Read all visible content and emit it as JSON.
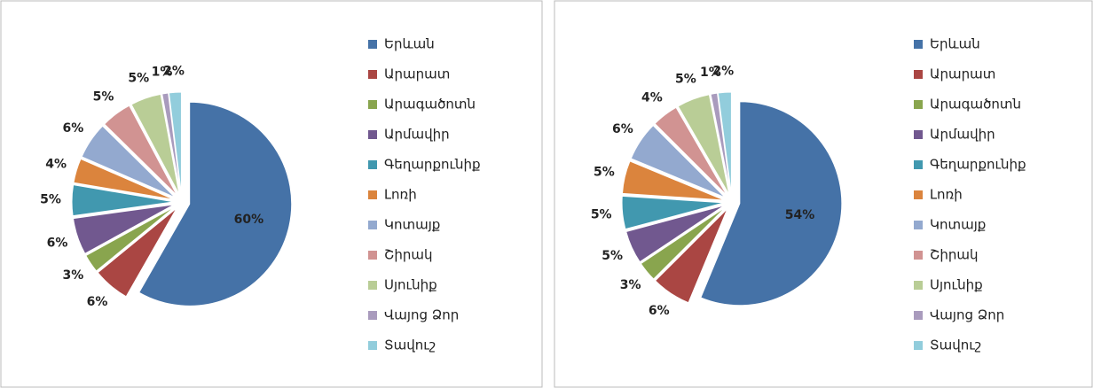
{
  "chart_data": [
    {
      "type": "pie",
      "categories": [
        "Երևան",
        "Արարատ",
        "Արագածոտն",
        "Արմավիր",
        "Գեղարքունիք",
        "Լոռի",
        "Կոտայք",
        "Շիրակ",
        "Սյունիք",
        "Վայոց Ձոր",
        "Տավուշ"
      ],
      "values": [
        60,
        6,
        3,
        6,
        5,
        4,
        6,
        5,
        5,
        1,
        2
      ],
      "value_labels": [
        "60%",
        "6%",
        "3%",
        "6%",
        "5%",
        "4%",
        "6%",
        "5%",
        "5%",
        "1%",
        "2%"
      ],
      "colors": [
        "#4572A7",
        "#AA4643",
        "#89A54E",
        "#71588F",
        "#4198AF",
        "#DB843D",
        "#93A9CF",
        "#D19392",
        "#B9CD96",
        "#A99BBD",
        "#92CDDC"
      ],
      "legend": "right"
    },
    {
      "type": "pie",
      "categories": [
        "Երևան",
        "Արարատ",
        "Արագածոտն",
        "Արմավիր",
        "Գեղարքունիք",
        "Լոռի",
        "Կոտայք",
        "Շիրակ",
        "Սյունիք",
        "Վայոց Ձոր",
        "Տավուշ"
      ],
      "values": [
        54,
        6,
        3,
        5,
        5,
        5,
        6,
        4,
        5,
        1,
        2
      ],
      "value_labels": [
        "54%",
        "6%",
        "3%",
        "5%",
        "5%",
        "5%",
        "6%",
        "4%",
        "5%",
        "1%",
        "2%"
      ],
      "colors": [
        "#4572A7",
        "#AA4643",
        "#89A54E",
        "#71588F",
        "#4198AF",
        "#DB843D",
        "#93A9CF",
        "#D19392",
        "#B9CD96",
        "#A99BBD",
        "#92CDDC"
      ],
      "legend": "right"
    }
  ]
}
